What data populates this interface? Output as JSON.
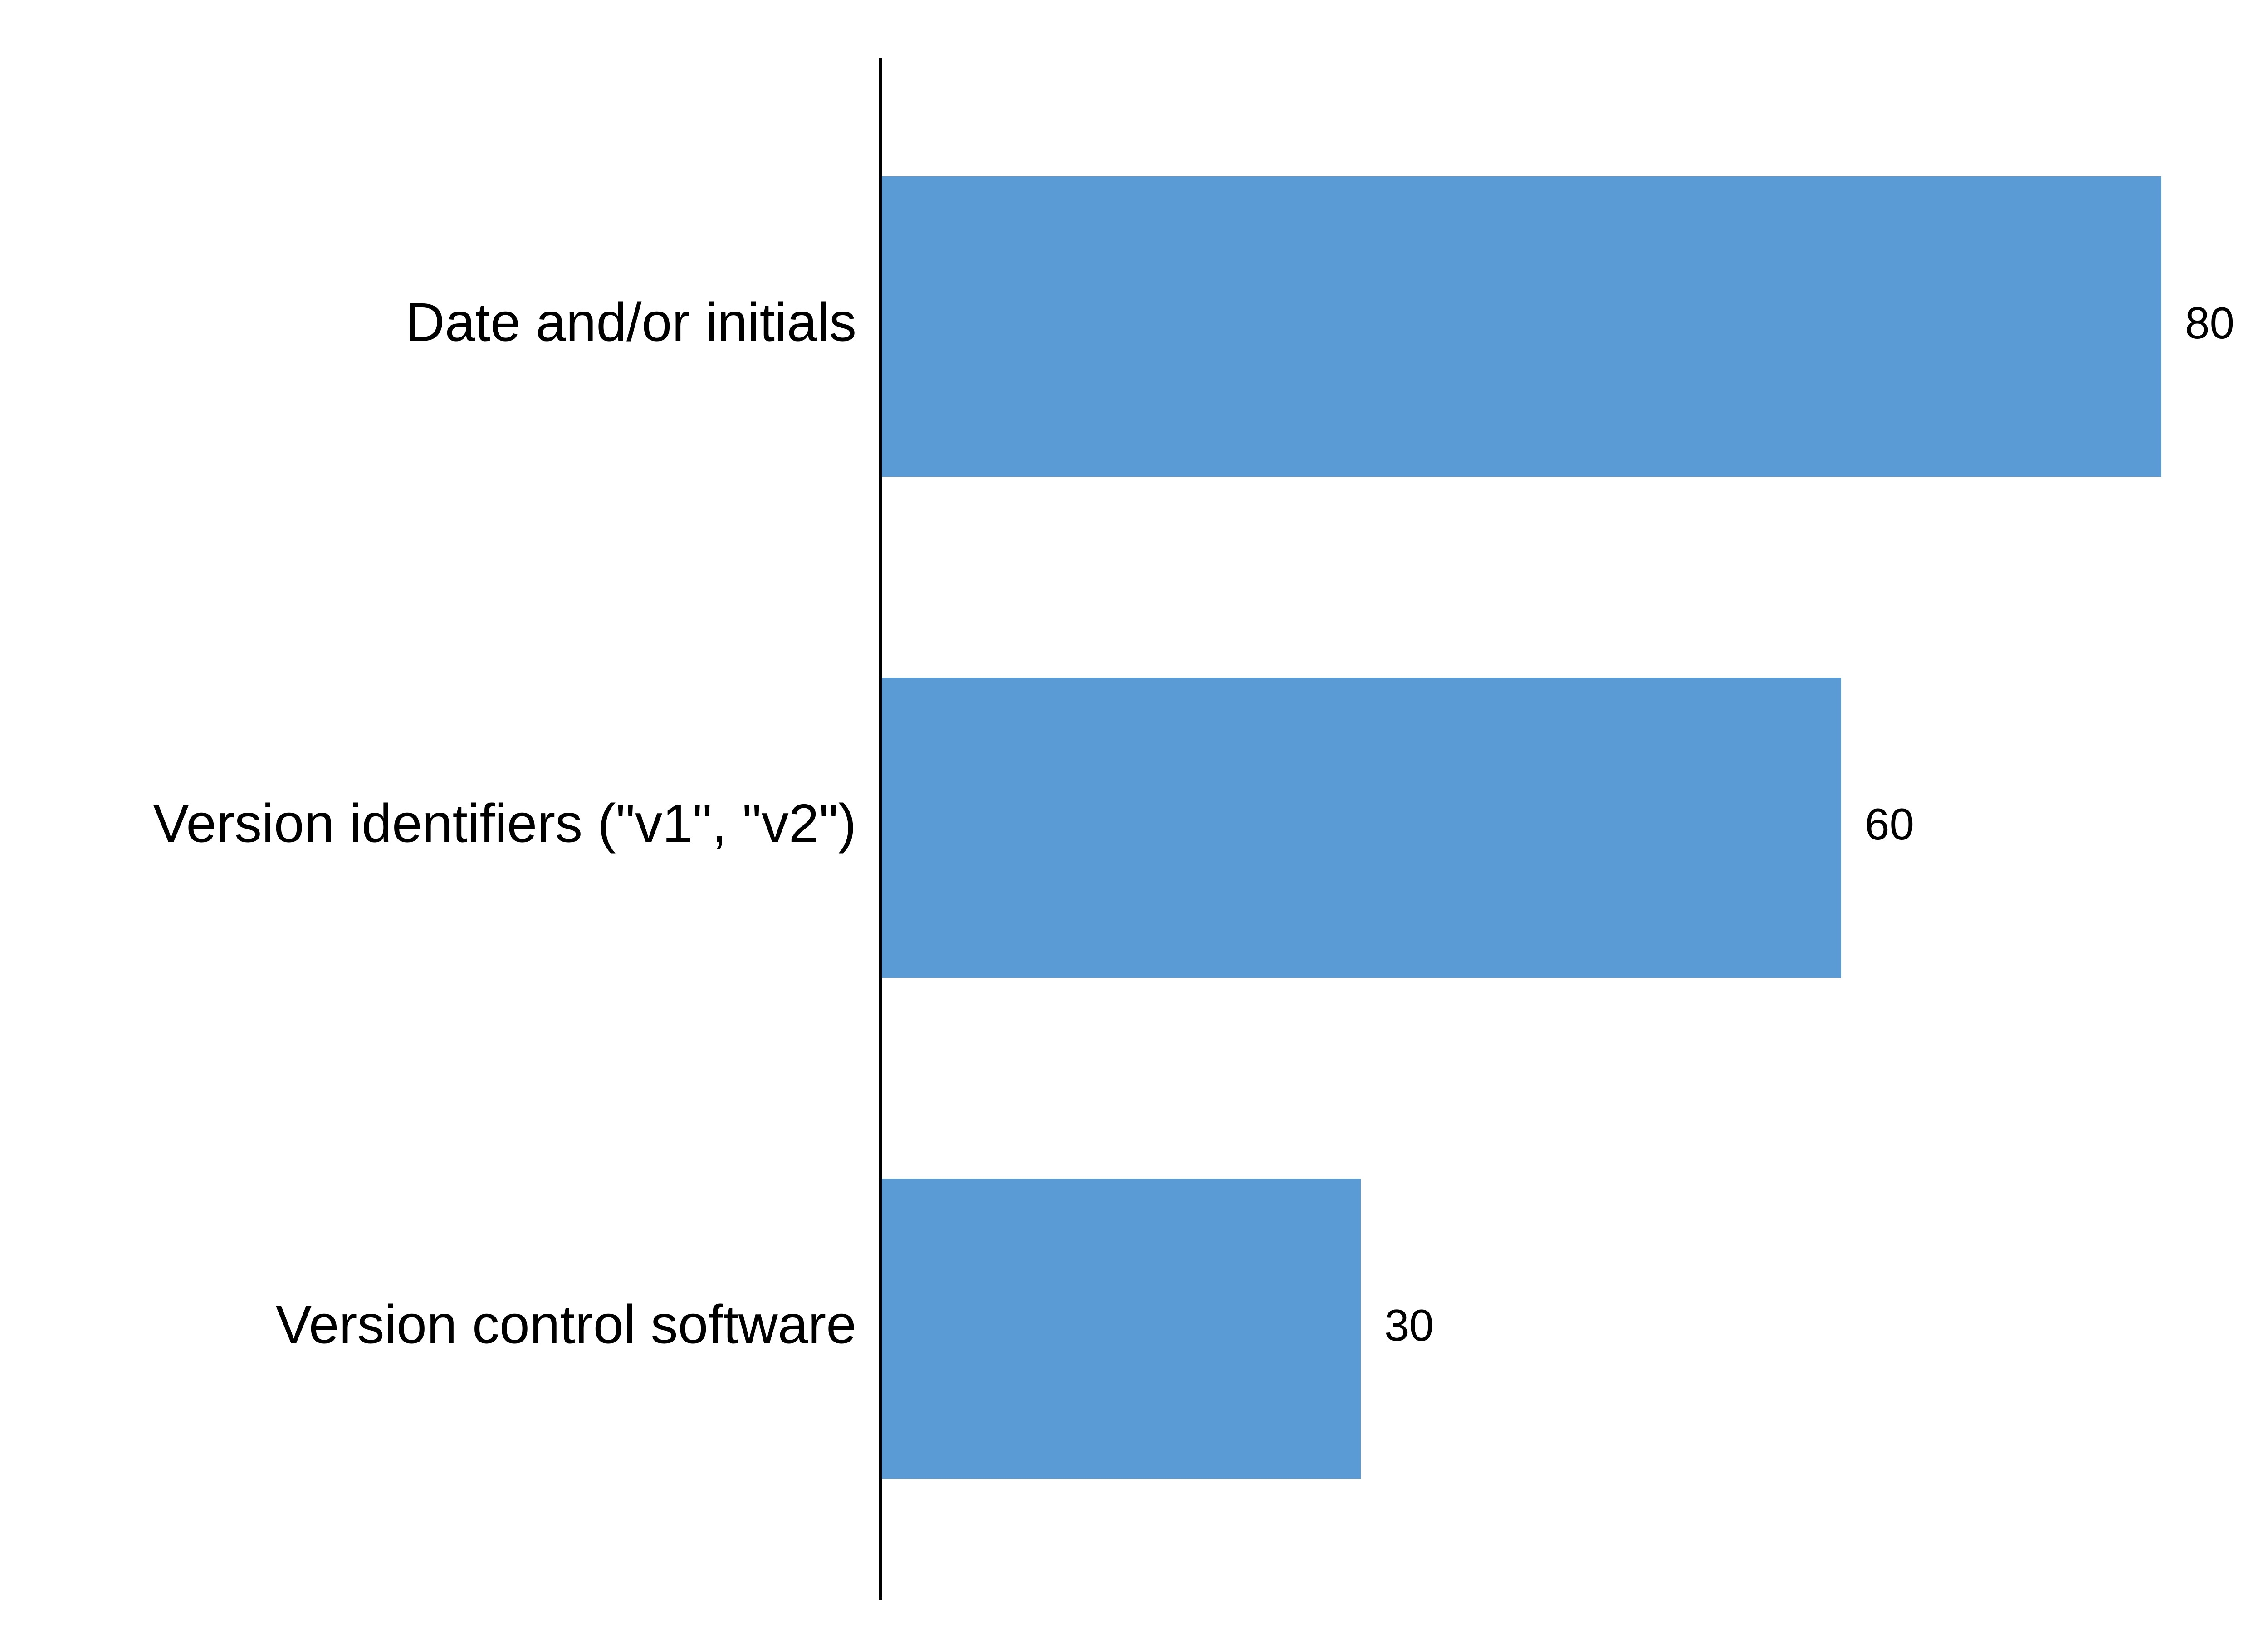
{
  "chart_data": {
    "type": "bar",
    "orientation": "horizontal",
    "categories": [
      "Date and/or initials",
      "Version identifiers (\"v1\", \"v2\")",
      "Version control software"
    ],
    "values": [
      80,
      60,
      30
    ],
    "value_labels": [
      "80",
      "60",
      "30"
    ],
    "title": "",
    "xlabel": "",
    "ylabel": "",
    "xlim": [
      0,
      80
    ],
    "grid": false,
    "legend": "none",
    "bar_color": "#5b9bd5"
  }
}
